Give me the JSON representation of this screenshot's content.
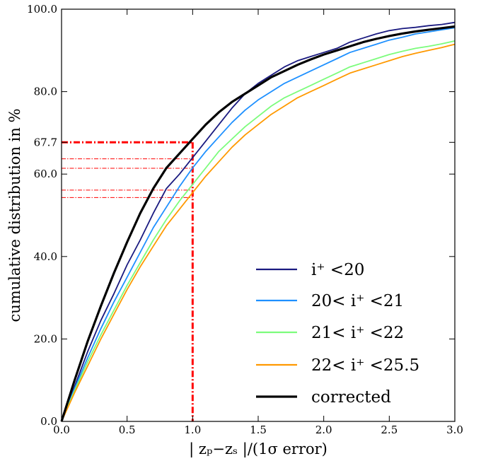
{
  "chart_data": {
    "type": "line",
    "xlabel": "| zₚ−zₛ |/(1σ error)",
    "ylabel": "cumulative distribution in %",
    "xlim": [
      0.0,
      3.0
    ],
    "ylim": [
      0.0,
      100.0
    ],
    "x_ticks": [
      0.0,
      0.5,
      1.0,
      1.5,
      2.0,
      2.5,
      3.0
    ],
    "x_tick_labels": [
      "0.0",
      "0.5",
      "1.0",
      "1.5",
      "2.0",
      "2.5",
      "3.0"
    ],
    "y_ticks": [
      0.0,
      20.0,
      40.0,
      60.0,
      67.7,
      80.0,
      100.0
    ],
    "y_tick_labels": [
      "0.0",
      "20.0",
      "40.0",
      "60.0",
      "67.7",
      "80.0",
      "100.0"
    ],
    "grid": false,
    "legend_position": "bottom-right",
    "series": [
      {
        "name": "i⁺ <20",
        "color": "#1a1a80",
        "x": [
          0,
          0.1,
          0.2,
          0.3,
          0.4,
          0.5,
          0.6,
          0.7,
          0.8,
          0.9,
          1.0,
          1.1,
          1.2,
          1.3,
          1.4,
          1.5,
          1.6,
          1.7,
          1.8,
          1.9,
          2.0,
          2.1,
          2.2,
          2.3,
          2.4,
          2.5,
          2.6,
          2.7,
          2.8,
          2.9,
          3.0
        ],
        "values": [
          0,
          8.5,
          17,
          24.5,
          31,
          38,
          44,
          50.5,
          56.5,
          60,
          64,
          68,
          72,
          76,
          79.5,
          82,
          84,
          86,
          87.5,
          88.5,
          89.5,
          90.5,
          92,
          93,
          94,
          94.8,
          95.3,
          95.6,
          96,
          96.3,
          96.8
        ]
      },
      {
        "name": "20< i⁺ <21",
        "color": "#1e90ff",
        "x": [
          0,
          0.1,
          0.2,
          0.3,
          0.4,
          0.5,
          0.6,
          0.7,
          0.8,
          0.9,
          1.0,
          1.1,
          1.2,
          1.3,
          1.4,
          1.5,
          1.6,
          1.7,
          1.8,
          1.9,
          2.0,
          2.1,
          2.2,
          2.3,
          2.4,
          2.5,
          2.6,
          2.7,
          2.8,
          2.9,
          3.0
        ],
        "values": [
          0,
          8,
          15.5,
          22.5,
          29,
          35,
          41,
          47,
          52,
          57,
          61.5,
          65.5,
          69,
          72.5,
          75.5,
          78,
          80,
          82,
          83.5,
          85,
          86.5,
          88,
          89.5,
          90.5,
          91.5,
          92.5,
          93.2,
          94,
          94.5,
          95,
          95.5
        ]
      },
      {
        "name": "21< i⁺ <22",
        "color": "#7cfc7c",
        "x": [
          0,
          0.1,
          0.2,
          0.3,
          0.4,
          0.5,
          0.6,
          0.7,
          0.8,
          0.9,
          1.0,
          1.1,
          1.2,
          1.3,
          1.4,
          1.5,
          1.6,
          1.7,
          1.8,
          1.9,
          2.0,
          2.1,
          2.2,
          2.3,
          2.4,
          2.5,
          2.6,
          2.7,
          2.8,
          2.9,
          3.0
        ],
        "values": [
          0,
          7.5,
          14.5,
          21,
          27,
          33,
          38.5,
          44,
          49,
          53.5,
          57.5,
          61.5,
          65.5,
          68.5,
          71.5,
          74,
          76.5,
          78.5,
          80,
          81.5,
          83,
          84.5,
          86,
          87,
          88,
          89,
          89.8,
          90.5,
          91,
          91.6,
          92.3
        ]
      },
      {
        "name": "22< i⁺ <25.5",
        "color": "#ff9900",
        "x": [
          0,
          0.1,
          0.2,
          0.3,
          0.4,
          0.5,
          0.6,
          0.7,
          0.8,
          0.9,
          1.0,
          1.1,
          1.2,
          1.3,
          1.4,
          1.5,
          1.6,
          1.7,
          1.8,
          1.9,
          2.0,
          2.1,
          2.2,
          2.3,
          2.4,
          2.5,
          2.6,
          2.7,
          2.8,
          2.9,
          3.0
        ],
        "values": [
          0,
          7,
          13.5,
          20,
          26,
          32,
          37.5,
          42.5,
          47.5,
          51.5,
          55.5,
          59.5,
          63,
          66.5,
          69.5,
          72,
          74.5,
          76.5,
          78.5,
          80,
          81.5,
          83,
          84.5,
          85.5,
          86.5,
          87.5,
          88.5,
          89.3,
          90,
          90.7,
          91.5
        ]
      },
      {
        "name": "corrected",
        "color": "#000000",
        "x": [
          0,
          0.1,
          0.2,
          0.3,
          0.4,
          0.5,
          0.6,
          0.7,
          0.8,
          0.9,
          1.0,
          1.1,
          1.2,
          1.3,
          1.4,
          1.5,
          1.6,
          1.7,
          1.8,
          1.9,
          2.0,
          2.1,
          2.2,
          2.3,
          2.4,
          2.5,
          2.6,
          2.7,
          2.8,
          2.9,
          3.0
        ],
        "values": [
          0,
          10,
          19.5,
          28,
          36,
          43.5,
          50.5,
          56.5,
          61.5,
          65,
          68.5,
          72,
          75,
          77.5,
          79.5,
          81.5,
          83.5,
          85,
          86.5,
          87.8,
          89,
          90,
          91,
          92,
          92.8,
          93.5,
          94.1,
          94.6,
          95,
          95.4,
          95.8
        ]
      }
    ],
    "reference_lines": [
      {
        "y": 67.7,
        "x_end": 1.0,
        "color": "#ff0000",
        "style": "dash-dot-thick"
      },
      {
        "y": 63.7,
        "x_end": 1.0,
        "color": "#ff0000",
        "style": "dash-dot-thin"
      },
      {
        "y": 61.4,
        "x_end": 1.0,
        "color": "#ff0000",
        "style": "dash-dot-thin"
      },
      {
        "y": 56.1,
        "x_end": 1.0,
        "color": "#ff0000",
        "style": "dash-dot-thin"
      },
      {
        "y": 54.3,
        "x_end": 1.0,
        "color": "#ff0000",
        "style": "dash-dot-thin"
      }
    ],
    "vertical_reference": {
      "x": 1.0,
      "y_end": 67.7,
      "color": "#ff0000",
      "style": "dash-dot-thick"
    }
  }
}
